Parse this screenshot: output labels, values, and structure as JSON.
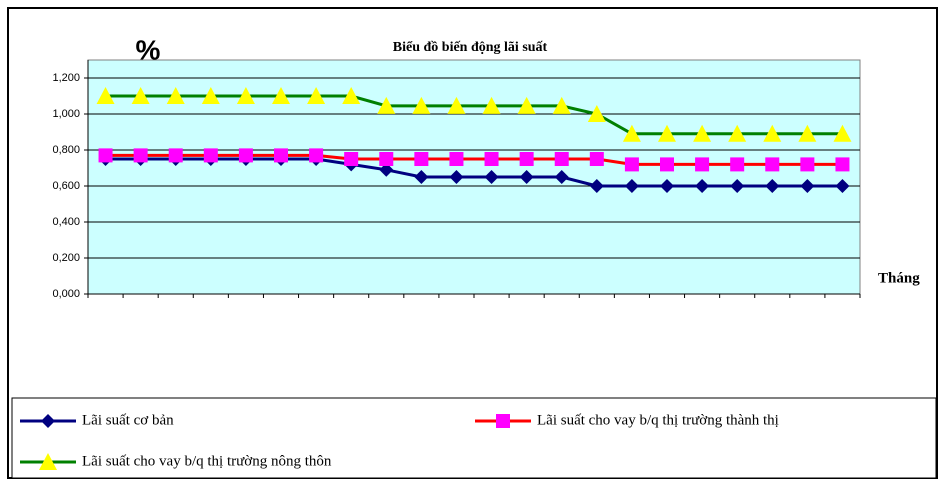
{
  "chart_data": {
    "type": "line",
    "title": "Biểu đồ biến động lãi suất",
    "y_label": "%",
    "x_label": "Tháng",
    "categories": [
      null,
      null,
      null,
      null,
      null,
      null,
      null,
      null,
      null,
      null,
      null,
      null,
      null,
      null,
      null,
      null,
      null,
      null,
      null,
      null,
      null,
      null
    ],
    "series": [
      {
        "name": "Lãi suất cơ bản",
        "color": "#000080",
        "marker": "diamond",
        "marker_color": "#000080",
        "values": [
          0.75,
          0.75,
          0.75,
          0.75,
          0.75,
          0.75,
          0.75,
          0.72,
          0.69,
          0.65,
          0.65,
          0.65,
          0.65,
          0.65,
          0.6,
          0.6,
          0.6,
          0.6,
          0.6,
          0.6,
          0.6,
          0.6
        ]
      },
      {
        "name": "Lãi suất cho vay b/q thị trường thành thị",
        "color": "#ff0000",
        "marker": "square",
        "marker_color": "#ff00ff",
        "values": [
          0.77,
          0.77,
          0.77,
          0.77,
          0.77,
          0.77,
          0.77,
          0.75,
          0.75,
          0.75,
          0.75,
          0.75,
          0.75,
          0.75,
          0.75,
          0.72,
          0.72,
          0.72,
          0.72,
          0.72,
          0.72,
          0.72
        ]
      },
      {
        "name": "Lãi suất cho vay b/q thị trường nông thôn",
        "color": "#008000",
        "marker": "triangle",
        "marker_color": "#ffff00",
        "values": [
          1.1,
          1.1,
          1.1,
          1.1,
          1.1,
          1.1,
          1.1,
          1.1,
          1.045,
          1.045,
          1.045,
          1.045,
          1.045,
          1.045,
          1.0,
          0.89,
          0.89,
          0.89,
          0.89,
          0.89,
          0.89,
          0.89
        ]
      }
    ],
    "ylim": [
      0,
      1.3
    ],
    "yticks": [
      {
        "value": 0,
        "label": "0,000"
      },
      {
        "value": 0.2,
        "label": "0,200"
      },
      {
        "value": 0.4,
        "label": "0,400"
      },
      {
        "value": 0.6,
        "label": "0,600"
      },
      {
        "value": 0.8,
        "label": "0,800"
      },
      {
        "value": 1.0,
        "label": "1,000"
      },
      {
        "value": 1.2,
        "label": "1,200"
      }
    ],
    "grid": true,
    "plot_background": "#ccffff",
    "legend": "bottom"
  }
}
